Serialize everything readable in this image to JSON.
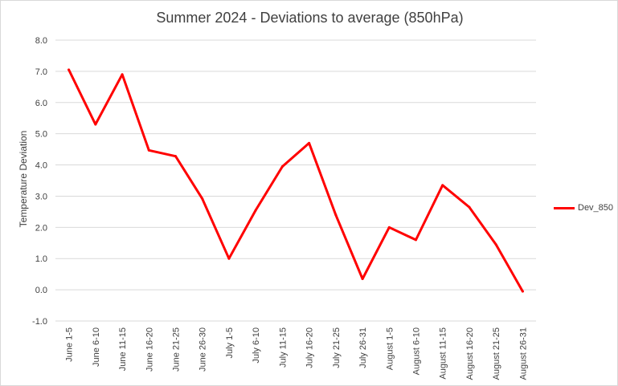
{
  "chart_data": {
    "type": "line",
    "title": "Summer 2024 - Deviations to average (850hPa)",
    "xlabel": "",
    "ylabel": "Temperature Deviation",
    "ylim": [
      -1.0,
      8.0
    ],
    "ytick_step": 1.0,
    "grid": true,
    "legend_position": "right",
    "categories": [
      "June 1-5",
      "June 6-10",
      "June 11-15",
      "June 16-20",
      "June 21-25",
      "June 26-30",
      "July 1-5",
      "July 6-10",
      "July 11-15",
      "July 16-20",
      "July 21-25",
      "July 26-31",
      "August 1-5",
      "August 6-10",
      "August 11-15",
      "August 16-20",
      "August 21-25",
      "August 26-31"
    ],
    "series": [
      {
        "name": "Dev_850",
        "color": "#ff0000",
        "values": [
          7.05,
          5.3,
          6.9,
          4.47,
          4.28,
          2.92,
          1.0,
          2.55,
          3.95,
          4.7,
          2.4,
          0.35,
          2.0,
          1.6,
          3.35,
          2.65,
          1.45,
          -0.05
        ]
      }
    ]
  }
}
